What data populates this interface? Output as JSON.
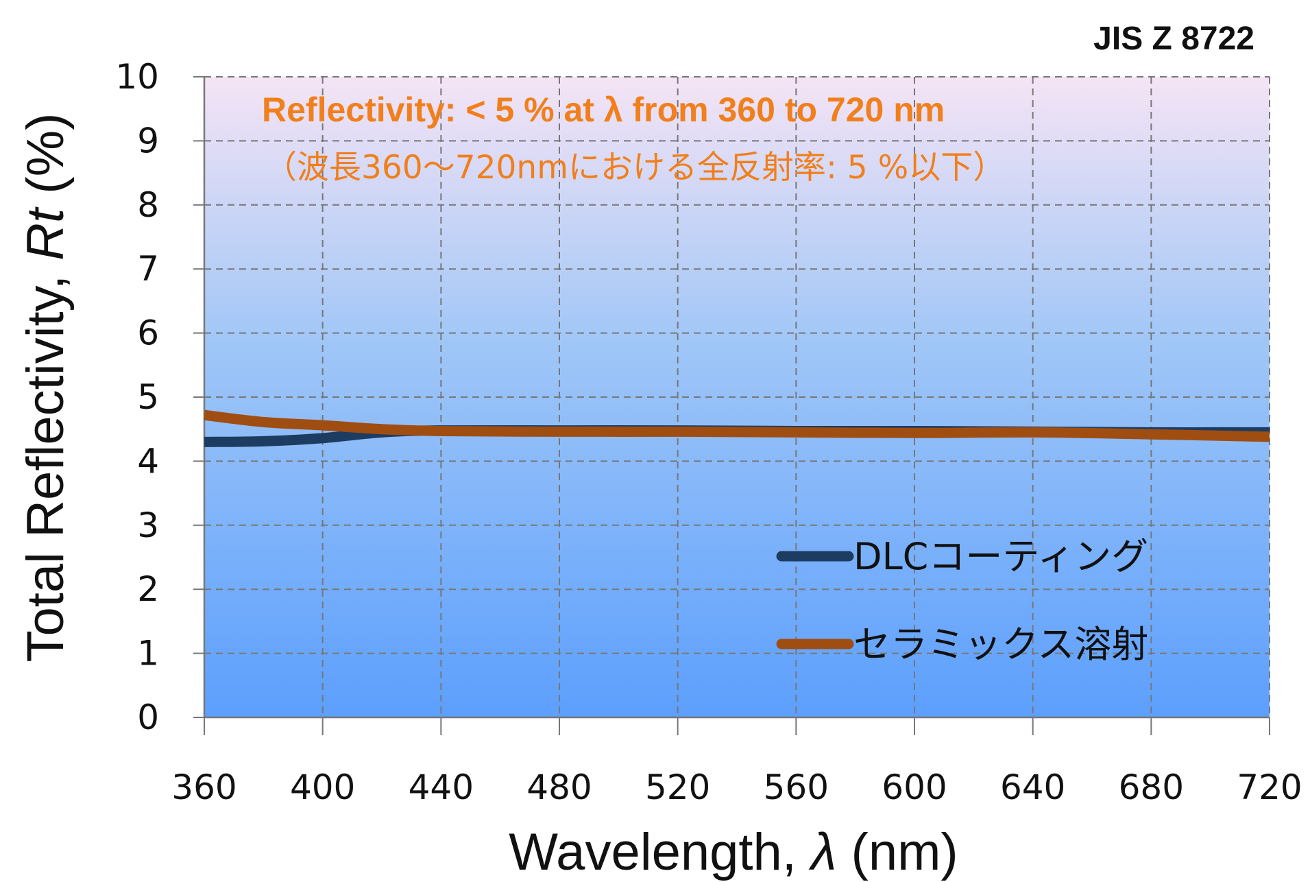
{
  "chart_data": {
    "type": "line",
    "standard": "JIS Z 8722",
    "xlabel": "Wavelength, λ (nm)",
    "xlabel_parts": [
      "Wavelength, ",
      "λ",
      " (nm)"
    ],
    "ylabel": "Total Reflectivity, Rt (%)",
    "ylabel_parts": [
      "Total Reflectivity, ",
      "Rt",
      " (%)"
    ],
    "xlim": [
      360,
      720
    ],
    "ylim": [
      0,
      10
    ],
    "xticks": [
      360,
      400,
      440,
      480,
      520,
      560,
      600,
      640,
      680,
      720
    ],
    "yticks": [
      0,
      1,
      2,
      3,
      4,
      5,
      6,
      7,
      8,
      9,
      10
    ],
    "grid": true,
    "legend_position": "lower-right",
    "annotation_en": "Reflectivity:  < 5 % at λ from 360 to 720 nm",
    "annotation_ja": "（波長360～720nmにおける全反射率: 5 %以下）",
    "colors": {
      "background_top": "#f5e4f5",
      "background_bottom": "#5c9ffd",
      "annotation": "#f07f1c",
      "grid": "#777777"
    },
    "series": [
      {
        "name": "DLCコーティング",
        "color": "#1d3c61",
        "x": [
          360,
          380,
          400,
          420,
          440,
          480,
          520,
          560,
          600,
          640,
          680,
          720
        ],
        "y": [
          4.3,
          4.31,
          4.36,
          4.45,
          4.48,
          4.48,
          4.48,
          4.47,
          4.47,
          4.46,
          4.45,
          4.45
        ]
      },
      {
        "name": "セラミックス溶射",
        "color": "#a04d12",
        "x": [
          360,
          380,
          400,
          420,
          440,
          480,
          520,
          560,
          600,
          640,
          680,
          720
        ],
        "y": [
          4.72,
          4.61,
          4.56,
          4.5,
          4.47,
          4.46,
          4.46,
          4.45,
          4.44,
          4.45,
          4.42,
          4.38
        ]
      }
    ]
  }
}
